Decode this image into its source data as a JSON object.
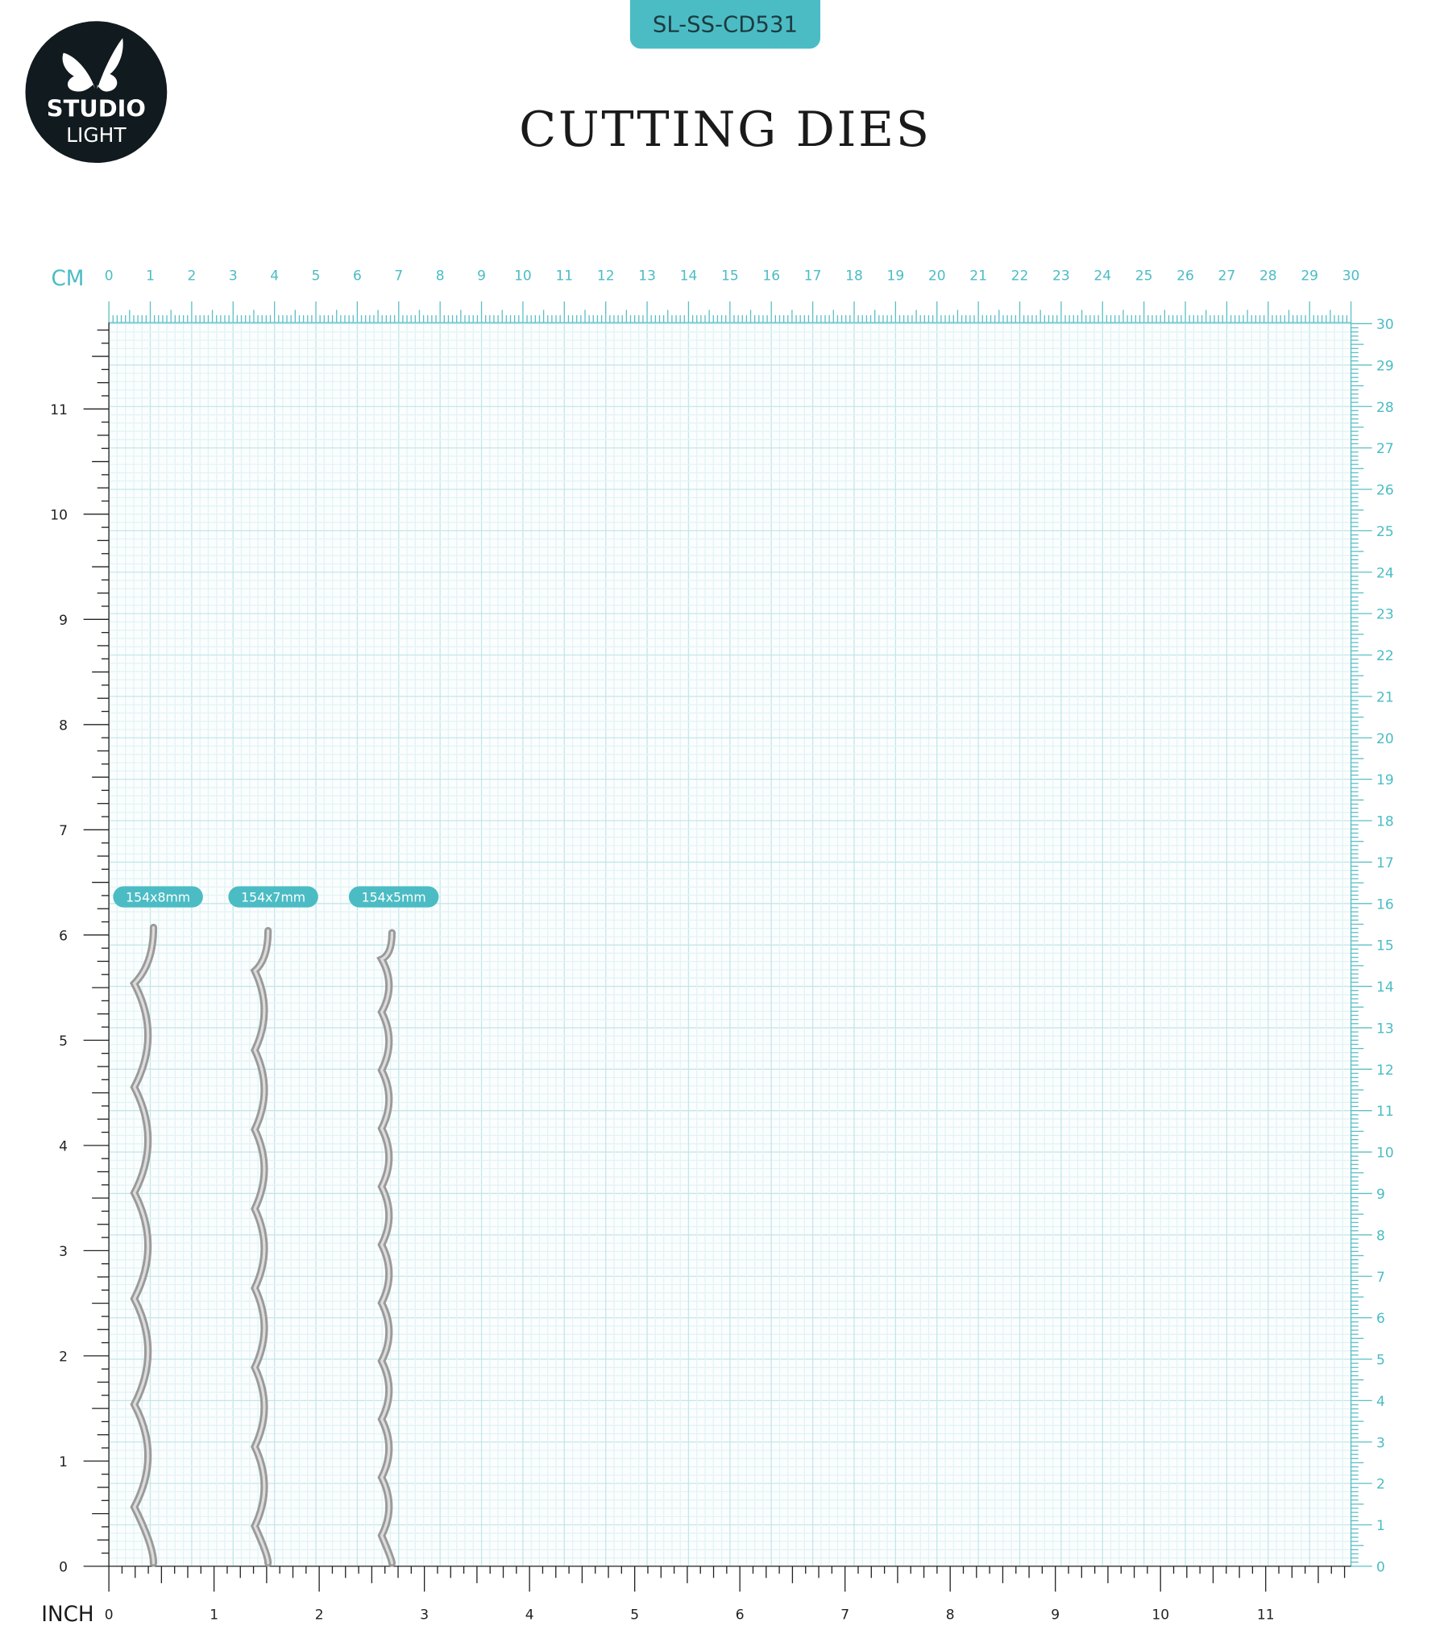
{
  "logo": {
    "line1": "STUDIO",
    "line2": "LIGHT"
  },
  "header": {
    "code": "SL-SS-CD531",
    "title": "CUTTING DIES"
  },
  "ruler": {
    "cm_label": "CM",
    "inch_label": "INCH",
    "cm_ticks": [
      0,
      1,
      2,
      3,
      4,
      5,
      6,
      7,
      8,
      9,
      10,
      11,
      12,
      13,
      14,
      15,
      16,
      17,
      18,
      19,
      20,
      21,
      22,
      23,
      24,
      25,
      26,
      27,
      28,
      29,
      30
    ],
    "inch_ticks": [
      0,
      1,
      2,
      3,
      4,
      5,
      6,
      7,
      8,
      9,
      10,
      11
    ]
  },
  "dies": [
    {
      "label": "154x8mm"
    },
    {
      "label": "154x7mm"
    },
    {
      "label": "154x5mm"
    }
  ]
}
